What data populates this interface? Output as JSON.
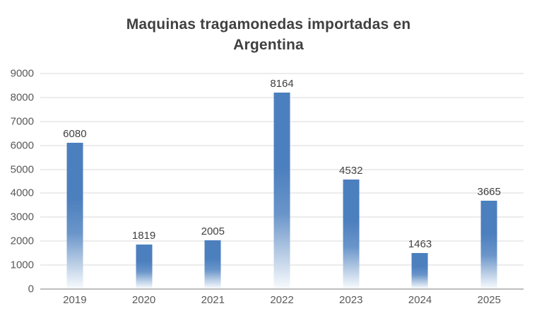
{
  "header": {
    "title_line1": "Maquinas tragamonedas importadas en",
    "title_line2": "Argentina"
  },
  "chart_data": {
    "type": "bar",
    "title": "Maquinas tragamonedas importadas en Argentina",
    "categories": [
      "2019",
      "2020",
      "2021",
      "2022",
      "2023",
      "2024",
      "2025"
    ],
    "values": [
      6080,
      1819,
      2005,
      8164,
      4532,
      1463,
      3665
    ],
    "xlabel": "",
    "ylabel": "",
    "ylim": [
      0,
      9000
    ],
    "ytick_step": 1000,
    "grid": true,
    "legend": false,
    "data_labels": true,
    "bar_color_top": "#4c7fbe",
    "bar_color_mid": "#6a95ca",
    "bar_color_fade": "#b6cbe4",
    "bar_color_bottom": "#f7fafd"
  },
  "colors": {
    "title": "#404040",
    "axis_labels": "#595959",
    "value_labels": "#404040",
    "gridline": "#d9d9d9",
    "axis_line": "#bfbfbf",
    "background": "#ffffff"
  }
}
